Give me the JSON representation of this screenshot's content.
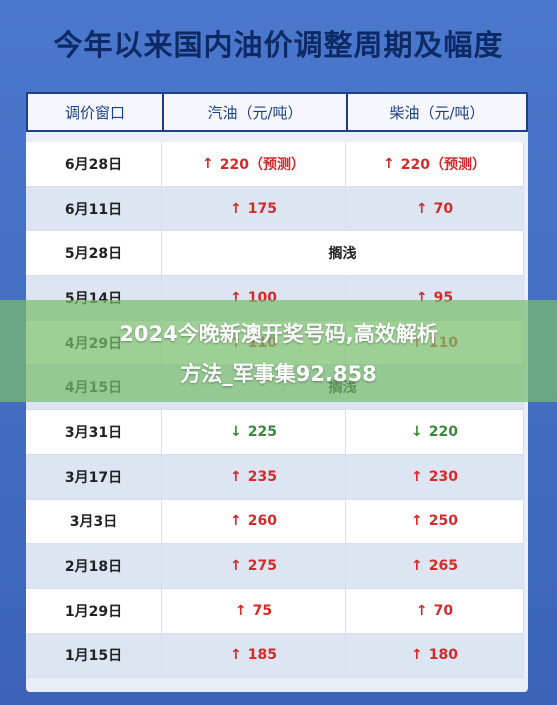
{
  "title": "今年以来国内油价调整周期及幅度",
  "headers": [
    "调价窗口",
    "汽油（元/吨）",
    "柴油（元/吨）"
  ],
  "rows": [
    {
      "date": "6月28日",
      "gas": "220（预测）",
      "gas_dir": "up",
      "diesel": "220（预测）",
      "diesel_dir": "up"
    },
    {
      "date": "6月11日",
      "gas": "175",
      "gas_dir": "up",
      "diesel": "70",
      "diesel_dir": "up"
    },
    {
      "date": "5月28日",
      "merged": "搁浅"
    },
    {
      "date": "5月14日",
      "gas": "100",
      "gas_dir": "up",
      "diesel": "95",
      "diesel_dir": "up"
    },
    {
      "date": "4月29日",
      "gas": "110",
      "gas_dir": "up",
      "diesel": "110",
      "diesel_dir": "up"
    },
    {
      "date": "4月15日",
      "merged": "搁浅"
    },
    {
      "date": "3月31日",
      "gas": "225",
      "gas_dir": "down",
      "diesel": "220",
      "diesel_dir": "down"
    },
    {
      "date": "3月17日",
      "gas": "235",
      "gas_dir": "up",
      "diesel": "230",
      "diesel_dir": "up"
    },
    {
      "date": "3月3日",
      "gas": "260",
      "gas_dir": "up",
      "diesel": "250",
      "diesel_dir": "up"
    },
    {
      "date": "2月18日",
      "gas": "275",
      "gas_dir": "up",
      "diesel": "265",
      "diesel_dir": "up"
    },
    {
      "date": "1月29日",
      "gas": "75",
      "gas_dir": "up",
      "diesel": "70",
      "diesel_dir": "up"
    },
    {
      "date": "1月15日",
      "gas": "185",
      "gas_dir": "up",
      "diesel": "180",
      "diesel_dir": "up"
    }
  ],
  "arrows": {
    "up": "↑",
    "down": "↓"
  },
  "overlay": {
    "line1": "2024今晚新澳开奖号码,高效解析",
    "line2": "方法_军事集92.858"
  }
}
